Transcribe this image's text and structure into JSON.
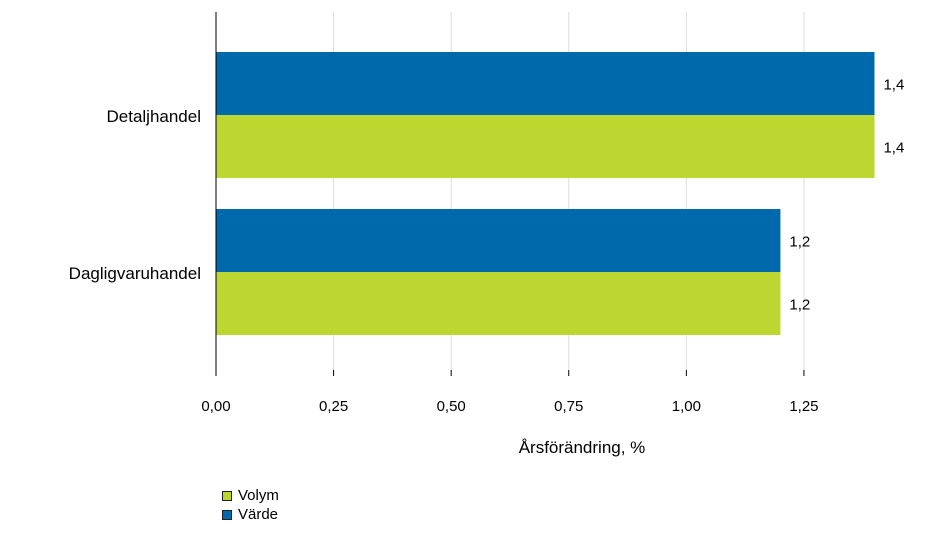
{
  "chart_data": {
    "type": "bar",
    "orientation": "horizontal",
    "categories": [
      "Detaljhandel",
      "Dagligvaruhandel"
    ],
    "series": [
      {
        "name": "Värde",
        "values": [
          1.4,
          1.2
        ],
        "labels": [
          "1,4",
          "1,2"
        ],
        "color": "#0069AB"
      },
      {
        "name": "Volym",
        "values": [
          1.4,
          1.2
        ],
        "labels": [
          "1,4",
          "1,2"
        ],
        "color": "#BED630"
      }
    ],
    "xlabel": "Årsförändring, %",
    "xlim": [
      0,
      1.45
    ],
    "ticks": [
      0,
      0.25,
      0.5,
      0.75,
      1.0,
      1.25
    ],
    "tick_labels": [
      "0,00",
      "0,25",
      "0,50",
      "0,75",
      "1,00",
      "1,25"
    ],
    "grid": true,
    "legend": {
      "placement": "bottom-left",
      "items": [
        {
          "name": "Volym",
          "color": "#BED630"
        },
        {
          "name": "Värde",
          "color": "#0069AB"
        }
      ]
    }
  }
}
